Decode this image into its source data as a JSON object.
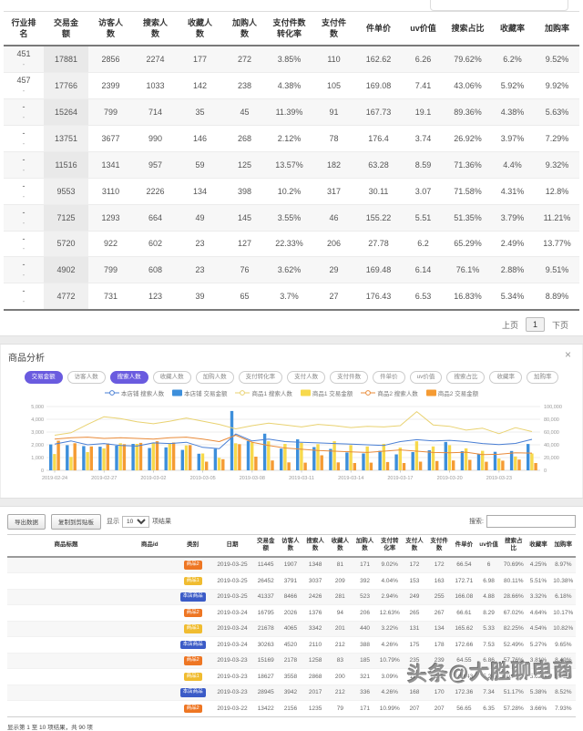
{
  "rank_table": {
    "columns": [
      "行业排\n名",
      "交易金\n额",
      "访客人\n数",
      "搜索人\n数",
      "收藏人\n数",
      "加购人\n数",
      "支付件数\n转化率",
      "支付件\n数",
      "件单价",
      "uv价值",
      "搜索占比",
      "收藏率",
      "加购率"
    ],
    "rows": [
      {
        "rank": "451",
        "sub": "-",
        "values": [
          "17881",
          "2856",
          "2274",
          "177",
          "272",
          "3.85%",
          "110",
          "162.62",
          "6.26",
          "79.62%",
          "6.2%",
          "9.52%"
        ]
      },
      {
        "rank": "457",
        "sub": "-",
        "values": [
          "17766",
          "2399",
          "1033",
          "142",
          "238",
          "4.38%",
          "105",
          "169.08",
          "7.41",
          "43.06%",
          "5.92%",
          "9.92%"
        ]
      },
      {
        "rank": "-",
        "sub": "-",
        "values": [
          "15264",
          "799",
          "714",
          "35",
          "45",
          "11.39%",
          "91",
          "167.73",
          "19.1",
          "89.36%",
          "4.38%",
          "5.63%"
        ]
      },
      {
        "rank": "-",
        "sub": "-",
        "values": [
          "13751",
          "3677",
          "990",
          "146",
          "268",
          "2.12%",
          "78",
          "176.4",
          "3.74",
          "26.92%",
          "3.97%",
          "7.29%"
        ]
      },
      {
        "rank": "-",
        "sub": "-",
        "values": [
          "11516",
          "1341",
          "957",
          "59",
          "125",
          "13.57%",
          "182",
          "63.28",
          "8.59",
          "71.36%",
          "4.4%",
          "9.32%"
        ]
      },
      {
        "rank": "-",
        "sub": "-",
        "values": [
          "9553",
          "3110",
          "2226",
          "134",
          "398",
          "10.2%",
          "317",
          "30.11",
          "3.07",
          "71.58%",
          "4.31%",
          "12.8%"
        ]
      },
      {
        "rank": "-",
        "sub": "-",
        "values": [
          "7125",
          "1293",
          "664",
          "49",
          "145",
          "3.55%",
          "46",
          "155.22",
          "5.51",
          "51.35%",
          "3.79%",
          "11.21%"
        ]
      },
      {
        "rank": "-",
        "sub": "-",
        "values": [
          "5720",
          "922",
          "602",
          "23",
          "127",
          "22.33%",
          "206",
          "27.78",
          "6.2",
          "65.29%",
          "2.49%",
          "13.77%"
        ]
      },
      {
        "rank": "-",
        "sub": "-",
        "values": [
          "4902",
          "799",
          "608",
          "23",
          "76",
          "3.62%",
          "29",
          "169.48",
          "6.14",
          "76.1%",
          "2.88%",
          "9.51%"
        ]
      },
      {
        "rank": "-",
        "sub": "-",
        "values": [
          "4772",
          "731",
          "123",
          "39",
          "65",
          "3.7%",
          "27",
          "176.43",
          "6.53",
          "16.83%",
          "5.34%",
          "8.89%"
        ]
      }
    ],
    "pagination": {
      "prev": "上页",
      "current": "1",
      "next": "下页"
    }
  },
  "panel": {
    "title": "商品分析",
    "close": "×",
    "pills": [
      {
        "label": "交易金额",
        "active": true
      },
      {
        "label": "访客人数",
        "active": false
      },
      {
        "label": "搜索人数",
        "active": true
      },
      {
        "label": "收藏人数",
        "active": false
      },
      {
        "label": "加购人数",
        "active": false
      },
      {
        "label": "支付转化率",
        "active": false
      },
      {
        "label": "支付人数",
        "active": false
      },
      {
        "label": "支付件数",
        "active": false
      },
      {
        "label": "件单价",
        "active": false
      },
      {
        "label": "uv价值",
        "active": false
      },
      {
        "label": "搜索占比",
        "active": false
      },
      {
        "label": "收藏率",
        "active": false
      },
      {
        "label": "加购率",
        "active": false
      }
    ],
    "accent_color": "#6a5bdf"
  },
  "chart_data": {
    "type": "bar+line",
    "x": [
      "2019-02-24",
      "2019-02-25",
      "2019-02-26",
      "2019-02-27",
      "2019-02-28",
      "2019-03-01",
      "2019-03-02",
      "2019-03-03",
      "2019-03-04",
      "2019-03-05",
      "2019-03-06",
      "2019-03-07",
      "2019-03-08",
      "2019-03-09",
      "2019-03-10",
      "2019-03-11",
      "2019-03-12",
      "2019-03-13",
      "2019-03-14",
      "2019-03-15",
      "2019-03-16",
      "2019-03-17",
      "2019-03-18",
      "2019-03-19",
      "2019-03-20",
      "2019-03-21",
      "2019-03-22",
      "2019-03-23",
      "2019-03-24",
      "2019-03-25"
    ],
    "x_tick_every": 3,
    "left_axis": {
      "label": "搜索人数",
      "min": 0,
      "max": 5000,
      "ticks": [
        0,
        1000,
        2000,
        3000,
        4000,
        5000
      ]
    },
    "right_axis": {
      "label": "交易金额",
      "min": 0,
      "max": 100000,
      "ticks": [
        0,
        20000,
        40000,
        60000,
        80000,
        100000
      ]
    },
    "grid": true,
    "legend_position": "top",
    "bar_series": [
      {
        "name": "本店铺 交易金额",
        "color": "#3d8fdb",
        "axis": "right",
        "values": [
          40500,
          39500,
          38000,
          37000,
          38500,
          41500,
          35000,
          36000,
          32000,
          26000,
          33500,
          93000,
          46000,
          57500,
          34000,
          48500,
          36500,
          33500,
          28000,
          26500,
          30500,
          25000,
          28500,
          31500,
          44500,
          30000,
          25500,
          28945,
          30263,
          41337
        ]
      },
      {
        "name": "商品1 交易金额",
        "color": "#f7d94c",
        "axis": "right",
        "values": [
          25500,
          21000,
          28500,
          34500,
          42500,
          41500,
          43500,
          42000,
          39000,
          26500,
          19500,
          42500,
          43500,
          45500,
          41500,
          43000,
          41000,
          45500,
          39500,
          37500,
          41500,
          35500,
          45500,
          37500,
          39500,
          34500,
          30500,
          18627,
          21678,
          26452
        ]
      },
      {
        "name": "商品2 交易金额",
        "color": "#f59b33",
        "axis": "right",
        "values": [
          46500,
          42500,
          37500,
          42000,
          41000,
          43000,
          45500,
          43500,
          39500,
          13500,
          17500,
          41000,
          21500,
          15500,
          12500,
          12000,
          23500,
          12500,
          11500,
          12000,
          13000,
          11500,
          13500,
          14500,
          15500,
          16500,
          13422,
          15169,
          16795,
          11445
        ]
      }
    ],
    "line_series": [
      {
        "name": "本店铺 搜索人数",
        "color": "#4a7fd4",
        "axis": "left",
        "values": [
          2050,
          2300,
          2000,
          2100,
          1950,
          1900,
          2150,
          2100,
          2200,
          1800,
          1700,
          2850,
          2300,
          2450,
          2250,
          2200,
          2150,
          2100,
          2050,
          2000,
          1950,
          2250,
          2400,
          2300,
          2350,
          2250,
          2100,
          2017,
          2110,
          2426
        ]
      },
      {
        "name": "商品1 搜索人数",
        "color": "#e9d271",
        "axis": "left",
        "values": [
          2750,
          2950,
          3600,
          4200,
          4050,
          3800,
          3650,
          3850,
          4100,
          3850,
          3600,
          3250,
          3500,
          3700,
          3550,
          3400,
          3600,
          3500,
          3350,
          3450,
          3400,
          3500,
          4600,
          3550,
          3450,
          3150,
          3300,
          2868,
          3342,
          3037
        ]
      },
      {
        "name": "商品2 搜索人数",
        "color": "#e98b3a",
        "axis": "left",
        "values": [
          2450,
          2550,
          2600,
          2500,
          2550,
          2500,
          2450,
          2550,
          2600,
          2450,
          2250,
          2750,
          2200,
          1950,
          1750,
          1650,
          1550,
          1500,
          1450,
          1400,
          1500,
          1600,
          1500,
          1400,
          1380,
          1420,
          1235,
          1258,
          1376,
          1348
        ]
      }
    ],
    "legend": [
      {
        "label": "本店铺 搜索人数",
        "type": "line",
        "color": "#4a7fd4"
      },
      {
        "label": "本店铺 交易金额",
        "type": "bar",
        "color": "#3d8fdb"
      },
      {
        "label": "商品1 搜索人数",
        "type": "line",
        "color": "#e9d271"
      },
      {
        "label": "商品1 交易金额",
        "type": "bar",
        "color": "#f7d94c"
      },
      {
        "label": "商品2 搜索人数",
        "type": "line",
        "color": "#e98b3a"
      },
      {
        "label": "商品2 交易金额",
        "type": "bar",
        "color": "#f59b33"
      }
    ]
  },
  "product_table": {
    "buttons": [
      "导出数据",
      "复制到剪贴板"
    ],
    "length": {
      "prefix": "显示",
      "value": "10",
      "suffix": "项结果"
    },
    "search_label": "搜索:",
    "search_value": "",
    "columns": [
      "商品标题",
      "商品id",
      "类别",
      "日期",
      "交易金\n额",
      "访客人\n数",
      "搜索人\n数",
      "收藏人\n数",
      "加购人\n数",
      "支付转\n化率",
      "支付人\n数",
      "支付件\n数",
      "件单价",
      "uv价值",
      "搜索占\n比",
      "收藏率",
      "加购率"
    ],
    "tag_colors": {
      "商品1": "#f0bc30",
      "商品2": "#ee7623",
      "本店商品": "#3b5bc7"
    },
    "rows": [
      {
        "tag": "商品2",
        "date": "2019-03-25",
        "values": [
          "11445",
          "1907",
          "1348",
          "81",
          "171",
          "9.02%",
          "172",
          "172",
          "66.54",
          "6",
          "70.69%",
          "4.25%",
          "8.97%"
        ]
      },
      {
        "tag": "商品1",
        "date": "2019-03-25",
        "values": [
          "26452",
          "3791",
          "3037",
          "209",
          "392",
          "4.04%",
          "153",
          "163",
          "172.71",
          "6.98",
          "80.11%",
          "5.51%",
          "10.38%"
        ]
      },
      {
        "tag": "本店商品",
        "date": "2019-03-25",
        "values": [
          "41337",
          "8466",
          "2426",
          "281",
          "523",
          "2.94%",
          "249",
          "255",
          "166.08",
          "4.88",
          "28.66%",
          "3.32%",
          "6.18%"
        ]
      },
      {
        "tag": "商品2",
        "date": "2019-03-24",
        "values": [
          "16795",
          "2026",
          "1376",
          "94",
          "206",
          "12.63%",
          "265",
          "267",
          "66.61",
          "8.29",
          "67.02%",
          "4.64%",
          "10.17%"
        ]
      },
      {
        "tag": "商品1",
        "date": "2019-03-24",
        "values": [
          "21678",
          "4065",
          "3342",
          "201",
          "440",
          "3.22%",
          "131",
          "134",
          "165.62",
          "5.33",
          "82.25%",
          "4.54%",
          "10.82%"
        ]
      },
      {
        "tag": "本店商品",
        "date": "2019-03-24",
        "values": [
          "30263",
          "4520",
          "2110",
          "212",
          "388",
          "4.26%",
          "175",
          "178",
          "172.66",
          "7.53",
          "52.49%",
          "5.27%",
          "9.65%"
        ]
      },
      {
        "tag": "商品2",
        "date": "2019-03-23",
        "values": [
          "15169",
          "2178",
          "1258",
          "83",
          "185",
          "10.79%",
          "235",
          "239",
          "64.55",
          "6.86",
          "57.76%",
          "3.81%",
          "8.49%"
        ]
      },
      {
        "tag": "商品1",
        "date": "2019-03-23",
        "values": [
          "18627",
          "3558",
          "2868",
          "200",
          "321",
          "3.09%",
          "110",
          "115",
          "169.43",
          "5.24",
          "80.64%",
          "5.62%",
          "9.02%"
        ]
      },
      {
        "tag": "本店商品",
        "date": "2019-03-23",
        "values": [
          "28945",
          "3942",
          "2017",
          "212",
          "336",
          "4.26%",
          "168",
          "170",
          "172.36",
          "7.34",
          "51.17%",
          "5.38%",
          "8.52%"
        ]
      },
      {
        "tag": "商品2",
        "date": "2019-03-22",
        "values": [
          "13422",
          "2156",
          "1235",
          "79",
          "171",
          "10.99%",
          "207",
          "207",
          "56.65",
          "6.35",
          "57.28%",
          "3.66%",
          "7.93%"
        ]
      }
    ],
    "footer": "显示第 1 至 10 项结果，共 90 项"
  },
  "watermark": "头条@大胜聊电商"
}
